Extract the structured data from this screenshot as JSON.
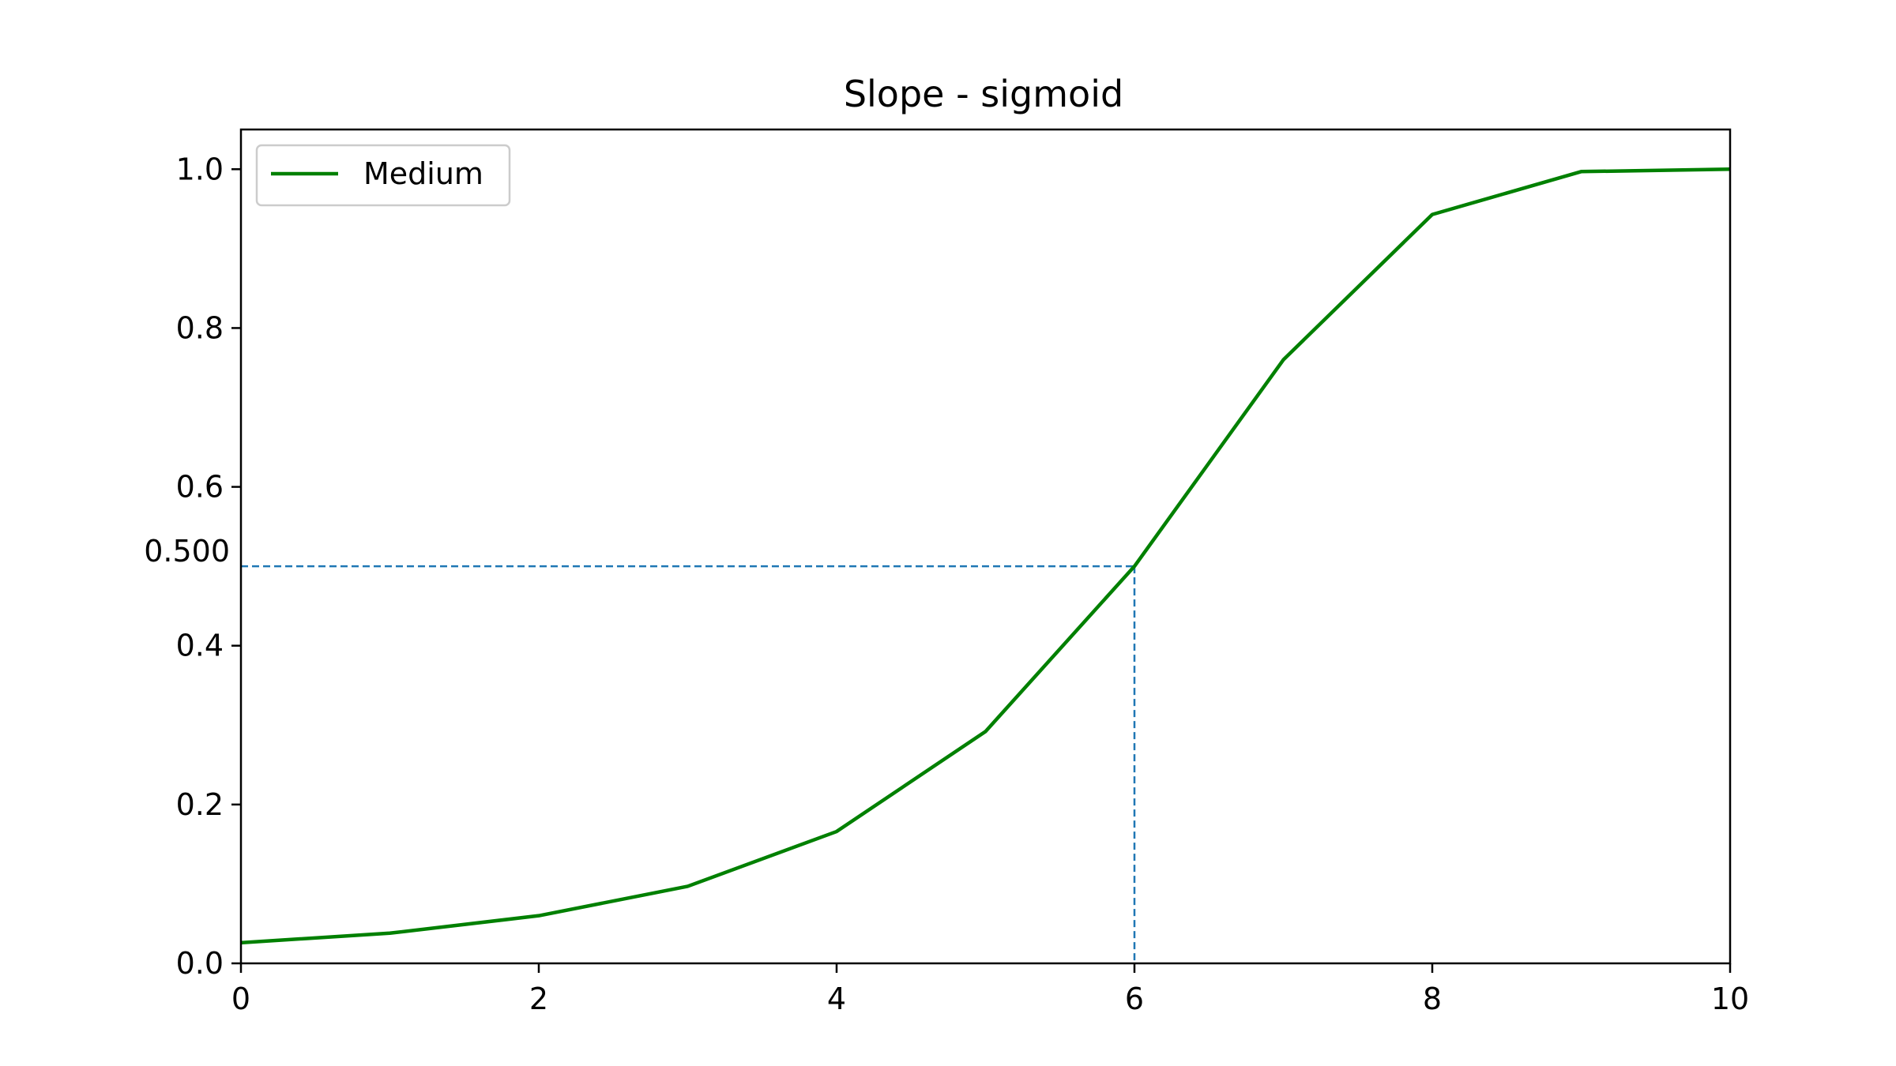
{
  "chart_data": {
    "type": "line",
    "title": "Slope - sigmoid",
    "xlabel": "",
    "ylabel": "",
    "xlim": [
      0,
      10
    ],
    "ylim": [
      0,
      1.05
    ],
    "grid": false,
    "legend_position": "top-left",
    "x_ticks": [
      {
        "value": 0,
        "label": "0"
      },
      {
        "value": 2,
        "label": "2"
      },
      {
        "value": 4,
        "label": "4"
      },
      {
        "value": 6,
        "label": "6"
      },
      {
        "value": 8,
        "label": "8"
      },
      {
        "value": 10,
        "label": "10"
      }
    ],
    "y_ticks": [
      {
        "value": 0.0,
        "label": "0.0"
      },
      {
        "value": 0.2,
        "label": "0.2"
      },
      {
        "value": 0.4,
        "label": "0.4"
      },
      {
        "value": 0.6,
        "label": "0.6"
      },
      {
        "value": 0.8,
        "label": "0.8"
      },
      {
        "value": 1.0,
        "label": "1.0"
      }
    ],
    "series": [
      {
        "name": "Medium",
        "color": "#008000",
        "x": [
          0,
          1,
          2,
          3,
          4,
          5,
          6,
          7,
          8,
          9,
          10
        ],
        "values": [
          0.026,
          0.038,
          0.06,
          0.097,
          0.166,
          0.292,
          0.5,
          0.76,
          0.943,
          0.997,
          1.0
        ]
      }
    ],
    "annotation": {
      "x": 6,
      "y": 0.5,
      "y_label": "0.500",
      "color": "#1f77b4",
      "style": "dashed"
    }
  }
}
